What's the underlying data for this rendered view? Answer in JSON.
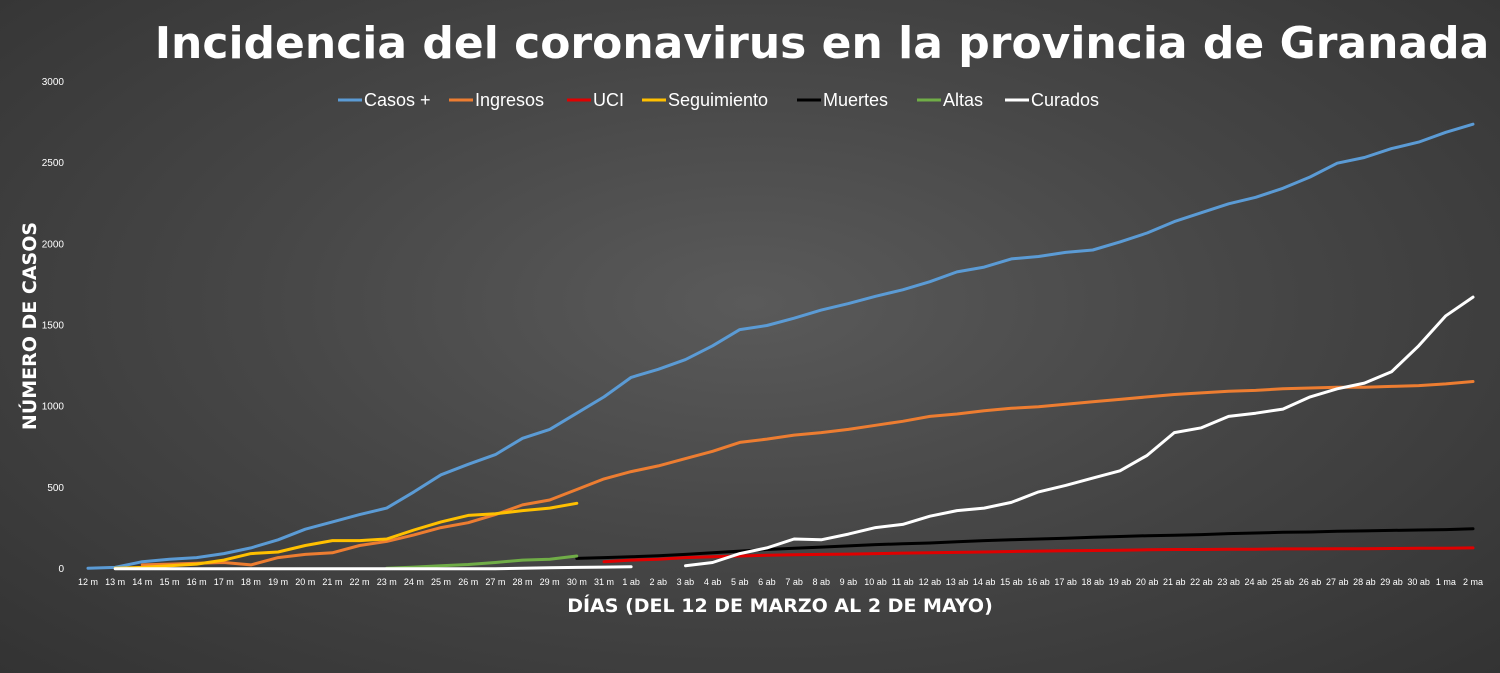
{
  "chart_data": {
    "type": "line",
    "title": "Incidencia del coronavirus en la provincia de Granada",
    "xlabel": "DÍAS (DEL 12 DE MARZO AL 2 DE MAYO)",
    "ylabel": "NÚMERO DE CASOS",
    "ylim": [
      0,
      3000
    ],
    "yticks": [
      0,
      500,
      1000,
      1500,
      2000,
      2500,
      3000
    ],
    "grid": false,
    "legend": "top",
    "categories": [
      "12 m",
      "13 m",
      "14 m",
      "15 m",
      "16 m",
      "17 m",
      "18 m",
      "19 m",
      "20 m",
      "21 m",
      "22 m",
      "23 m",
      "24 m",
      "25 m",
      "26 m",
      "27 m",
      "28 m",
      "29 m",
      "30 m",
      "31 m",
      "1 ab",
      "2 ab",
      "3 ab",
      "4 ab",
      "5 ab",
      "6 ab",
      "7 ab",
      "8 ab",
      "9 ab",
      "10 ab",
      "11 ab",
      "12 ab",
      "13 ab",
      "14 ab",
      "15 ab",
      "16 ab",
      "17 ab",
      "18 ab",
      "19 ab",
      "20 ab",
      "21 ab",
      "22 ab",
      "23 ab",
      "24 ab",
      "25 ab",
      "26 ab",
      "27 ab",
      "28 ab",
      "29 ab",
      "30 ab",
      "1 ma",
      "2 ma"
    ],
    "series": [
      {
        "name": "Casos +",
        "color": "#5b9bd5",
        "values": [
          5,
          10,
          45,
          60,
          70,
          95,
          130,
          180,
          245,
          290,
          335,
          375,
          475,
          580,
          645,
          705,
          805,
          860,
          960,
          1060,
          1180,
          1230,
          1290,
          1375,
          1475,
          1500,
          1545,
          1595,
          1635,
          1680,
          1720,
          1770,
          1830,
          1860,
          1910,
          1925,
          1950,
          1965,
          2015,
          2070,
          2140,
          2195,
          2250,
          2290,
          2345,
          2415,
          2500,
          2535,
          2590,
          2630,
          2690,
          2740
        ]
      },
      {
        "name": "Ingresos",
        "color": "#ed7d31",
        "values": [
          null,
          null,
          25,
          30,
          35,
          40,
          25,
          70,
          90,
          100,
          145,
          170,
          210,
          255,
          285,
          335,
          395,
          425,
          490,
          555,
          600,
          635,
          680,
          725,
          780,
          800,
          825,
          840,
          860,
          885,
          910,
          940,
          955,
          975,
          990,
          1000,
          1015,
          1030,
          1045,
          1060,
          1075,
          1085,
          1095,
          1100,
          1110,
          1115,
          1120,
          1120,
          1125,
          1130,
          1140,
          1155
        ]
      },
      {
        "name": "UCI",
        "color": "#e00000",
        "values": [
          null,
          null,
          null,
          null,
          null,
          null,
          null,
          null,
          null,
          null,
          null,
          null,
          null,
          null,
          null,
          null,
          null,
          null,
          null,
          45,
          55,
          60,
          70,
          75,
          80,
          85,
          88,
          90,
          92,
          95,
          98,
          100,
          102,
          105,
          108,
          110,
          112,
          114,
          116,
          118,
          120,
          120,
          122,
          122,
          124,
          124,
          125,
          125,
          126,
          128,
          128,
          130
        ]
      },
      {
        "name": "Seguimiento",
        "color": "#ffc000",
        "values": [
          null,
          5,
          10,
          20,
          30,
          55,
          95,
          105,
          145,
          175,
          175,
          185,
          240,
          290,
          330,
          340,
          360,
          375,
          405,
          null,
          null,
          null,
          null,
          null,
          null,
          null,
          null,
          null,
          null,
          null,
          null,
          null,
          null,
          null,
          null,
          null,
          null,
          null,
          null,
          null,
          null,
          null,
          null,
          null,
          null,
          null,
          null,
          null,
          null,
          null,
          null,
          null
        ]
      },
      {
        "name": "Muertes",
        "color": "#000000",
        "values": [
          null,
          null,
          null,
          null,
          null,
          null,
          null,
          null,
          null,
          null,
          null,
          null,
          null,
          null,
          null,
          null,
          null,
          null,
          65,
          70,
          75,
          82,
          90,
          100,
          110,
          120,
          128,
          135,
          142,
          150,
          155,
          160,
          168,
          175,
          180,
          185,
          190,
          195,
          200,
          205,
          208,
          212,
          218,
          222,
          226,
          228,
          232,
          235,
          238,
          240,
          243,
          248
        ]
      },
      {
        "name": "Altas",
        "color": "#70ad47",
        "values": [
          null,
          null,
          null,
          null,
          null,
          null,
          null,
          null,
          null,
          null,
          null,
          5,
          12,
          20,
          28,
          40,
          55,
          60,
          80,
          null,
          null,
          null,
          null,
          null,
          null,
          null,
          null,
          null,
          null,
          null,
          null,
          null,
          null,
          null,
          null,
          null,
          null,
          null,
          null,
          null,
          null,
          null,
          null,
          null,
          null,
          null,
          null,
          null,
          null,
          null,
          null,
          null
        ]
      },
      {
        "name": "Curados",
        "color": "#ffffff",
        "values": [
          null,
          2,
          2,
          2,
          2,
          2,
          2,
          2,
          2,
          2,
          2,
          2,
          2,
          2,
          2,
          2,
          5,
          8,
          10,
          12,
          14,
          null,
          20,
          40,
          95,
          130,
          185,
          180,
          215,
          255,
          275,
          325,
          360,
          375,
          410,
          475,
          515,
          560,
          605,
          700,
          840,
          870,
          940,
          960,
          985,
          1060,
          1110,
          1145,
          1215,
          1375,
          1560,
          1675
        ]
      }
    ]
  }
}
